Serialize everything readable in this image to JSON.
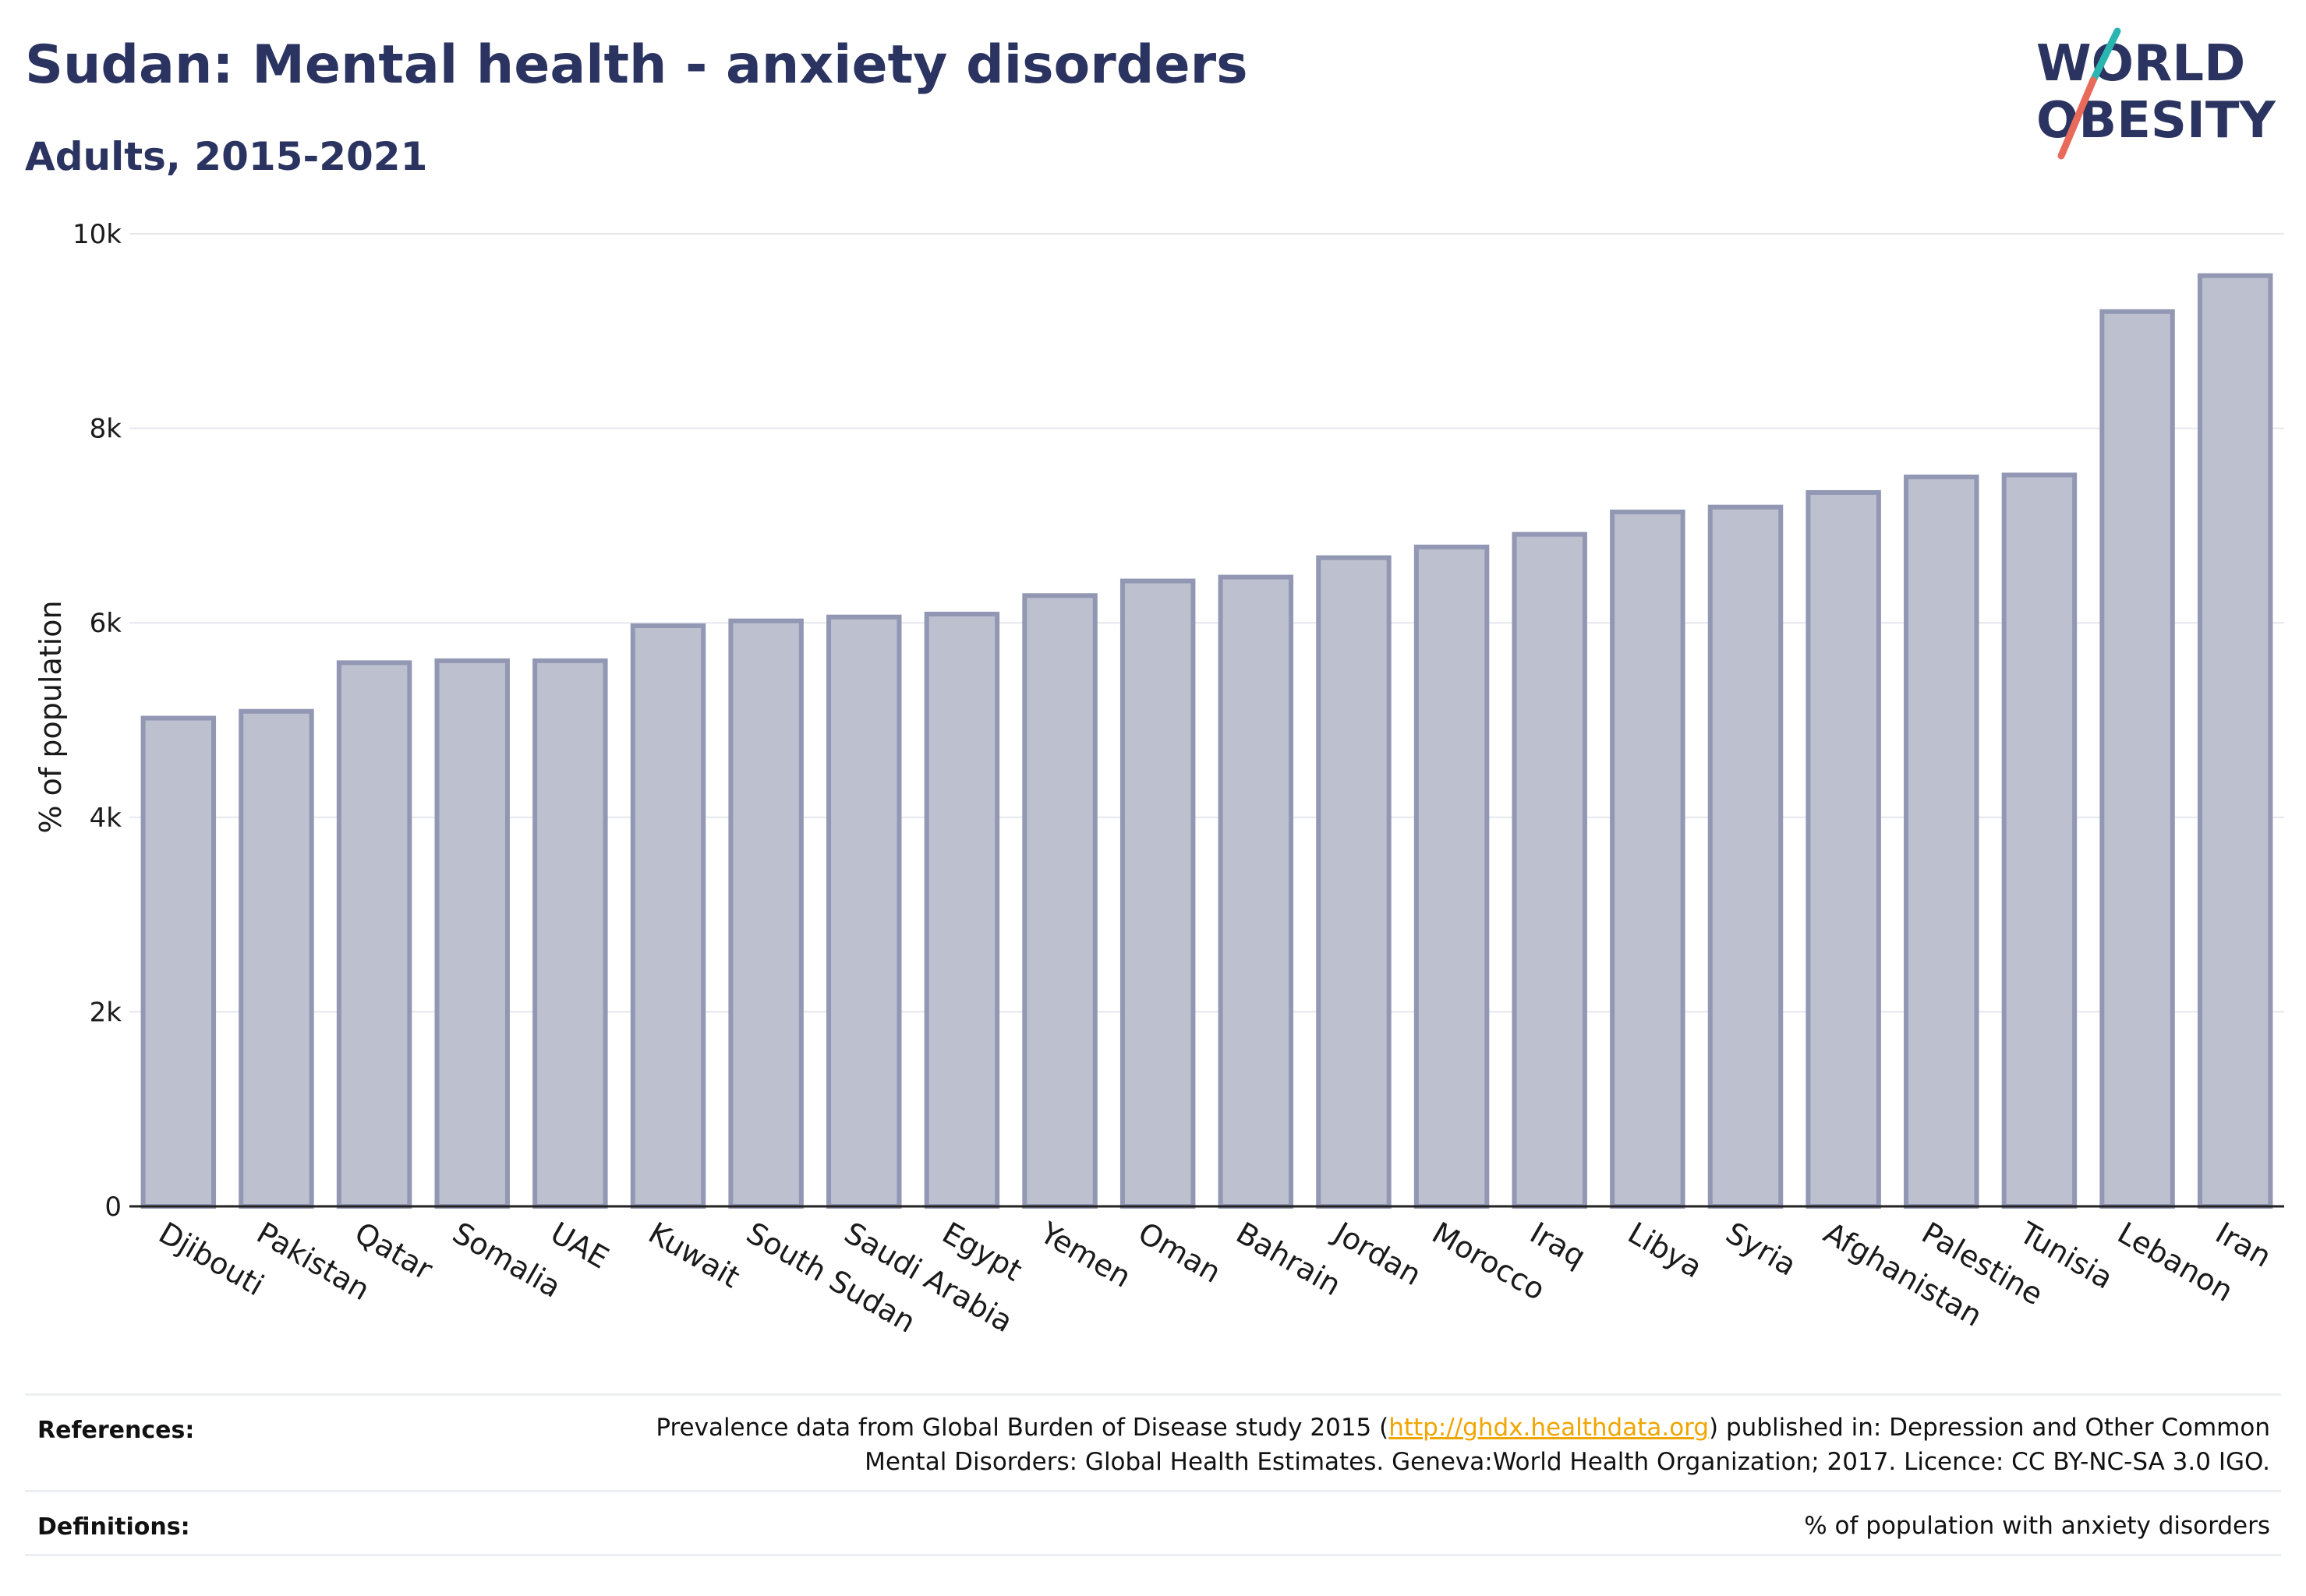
{
  "header": {
    "title": "Sudan: Mental health - anxiety disorders",
    "subtitle": "Adults, 2015-2021"
  },
  "logo": {
    "line1": "WORLD",
    "line2": "OBESITY",
    "colors": {
      "text": "#2b3360",
      "slash_top": "#2bb5b0",
      "slash_bottom": "#e96a5a"
    }
  },
  "chart_data": {
    "type": "bar",
    "ylabel": "% of population",
    "xlabel": "",
    "ylim": [
      0,
      10000
    ],
    "yticks": [
      0,
      2000,
      4000,
      6000,
      8000,
      10000
    ],
    "ytick_labels": [
      "0",
      "2k",
      "4k",
      "6k",
      "8k",
      "10k"
    ],
    "grid": true,
    "bar_color": "#bcc0cf",
    "bar_edge_color": "#9297b3",
    "categories": [
      "Djibouti",
      "Pakistan",
      "Qatar",
      "Somalia",
      "UAE",
      "Kuwait",
      "South Sudan",
      "Saudi Arabia",
      "Egypt",
      "Yemen",
      "Oman",
      "Bahrain",
      "Jordan",
      "Morocco",
      "Iraq",
      "Libya",
      "Syria",
      "Afghanistan",
      "Palestine",
      "Tunisia",
      "Lebanon",
      "Iran"
    ],
    "values": [
      5020,
      5090,
      5590,
      5610,
      5610,
      5970,
      6020,
      6060,
      6090,
      6280,
      6430,
      6470,
      6670,
      6780,
      6910,
      7140,
      7190,
      7340,
      7500,
      7520,
      9200,
      9570
    ]
  },
  "footer": {
    "references_label": "References:",
    "references_line1_before": "Prevalence data from Global Burden of Disease study 2015 (",
    "references_link": "http://ghdx.healthdata.org",
    "references_line1_after": ") published in: Depression and Other Common",
    "references_line2": "Mental Disorders: Global Health Estimates. Geneva:World Health Organization; 2017. Licence: CC BY-NC-SA 3.0 IGO.",
    "definitions_label": "Definitions:",
    "definitions_text": "% of population with anxiety disorders"
  }
}
